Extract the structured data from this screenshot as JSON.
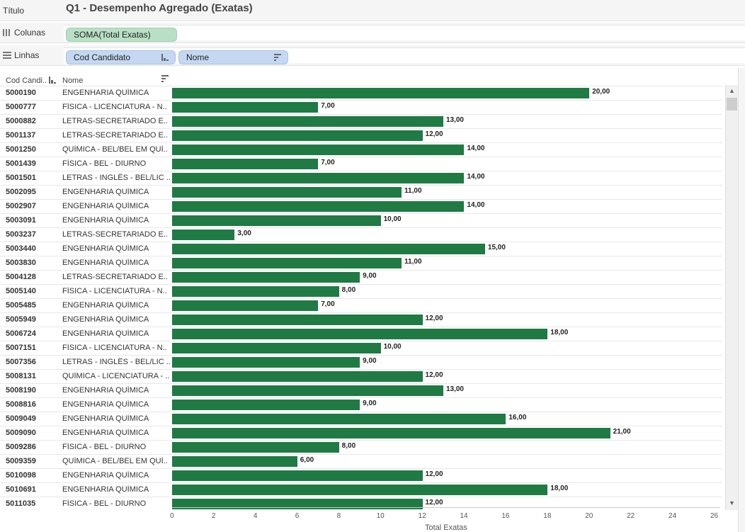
{
  "shelves": {
    "title_label": "Título",
    "title_value": "Q1 - Desempenho Agregado (Exatas)",
    "columns_label": "Colunas",
    "columns_pill": "SOMA(Total Exatas)",
    "rows_label": "Linhas",
    "rows_pills": [
      "Cod Candidato",
      "Nome"
    ]
  },
  "table": {
    "col_headers": [
      "Cod Candi..",
      "Nome"
    ]
  },
  "chart_data": {
    "type": "bar",
    "orientation": "horizontal",
    "xlabel": "Total Exatas",
    "xlim": [
      0,
      26
    ],
    "xticks": [
      0,
      2,
      4,
      6,
      8,
      10,
      12,
      14,
      16,
      18,
      20,
      22,
      24,
      26
    ],
    "bar_color": "#1f7a44",
    "rows": [
      {
        "cod": "5000190",
        "nome": "ENGENHARIA QUÍMICA",
        "value": 20,
        "label": "20,00"
      },
      {
        "cod": "5000777",
        "nome": "FÍSICA - LICENCIATURA - N..",
        "value": 7,
        "label": "7,00"
      },
      {
        "cod": "5000882",
        "nome": "LETRAS-SECRETARIADO E..",
        "value": 13,
        "label": "13,00"
      },
      {
        "cod": "5001137",
        "nome": "LETRAS-SECRETARIADO E..",
        "value": 12,
        "label": "12,00"
      },
      {
        "cod": "5001250",
        "nome": "QUÍMICA - BEL/BEL EM QUÍ..",
        "value": 14,
        "label": "14,00"
      },
      {
        "cod": "5001439",
        "nome": "FÍSICA - BEL - DIURNO",
        "value": 7,
        "label": "7,00"
      },
      {
        "cod": "5001501",
        "nome": "LETRAS - INGLÊS - BEL/LIC ..",
        "value": 14,
        "label": "14,00"
      },
      {
        "cod": "5002095",
        "nome": "ENGENHARIA QUÍMICA",
        "value": 11,
        "label": "11,00"
      },
      {
        "cod": "5002907",
        "nome": "ENGENHARIA QUÍMICA",
        "value": 14,
        "label": "14,00"
      },
      {
        "cod": "5003091",
        "nome": "ENGENHARIA QUÍMICA",
        "value": 10,
        "label": "10,00"
      },
      {
        "cod": "5003237",
        "nome": "LETRAS-SECRETARIADO E..",
        "value": 3,
        "label": "3,00"
      },
      {
        "cod": "5003440",
        "nome": "ENGENHARIA QUÍMICA",
        "value": 15,
        "label": "15,00"
      },
      {
        "cod": "5003830",
        "nome": "ENGENHARIA QUÍMICA",
        "value": 11,
        "label": "11,00"
      },
      {
        "cod": "5004128",
        "nome": "LETRAS-SECRETARIADO E..",
        "value": 9,
        "label": "9,00"
      },
      {
        "cod": "5005140",
        "nome": "FÍSICA - LICENCIATURA - N..",
        "value": 8,
        "label": "8,00"
      },
      {
        "cod": "5005485",
        "nome": "ENGENHARIA QUÍMICA",
        "value": 7,
        "label": "7,00"
      },
      {
        "cod": "5005949",
        "nome": "ENGENHARIA QUÍMICA",
        "value": 12,
        "label": "12,00"
      },
      {
        "cod": "5006724",
        "nome": "ENGENHARIA QUÍMICA",
        "value": 18,
        "label": "18,00"
      },
      {
        "cod": "5007151",
        "nome": "FÍSICA - LICENCIATURA - N..",
        "value": 10,
        "label": "10,00"
      },
      {
        "cod": "5007356",
        "nome": "LETRAS - INGLÊS - BEL/LIC ..",
        "value": 9,
        "label": "9,00"
      },
      {
        "cod": "5008131",
        "nome": "QUÍMICA - LICENCIATURA - ..",
        "value": 12,
        "label": "12,00"
      },
      {
        "cod": "5008190",
        "nome": "ENGENHARIA QUÍMICA",
        "value": 13,
        "label": "13,00"
      },
      {
        "cod": "5008816",
        "nome": "ENGENHARIA QUÍMICA",
        "value": 9,
        "label": "9,00"
      },
      {
        "cod": "5009049",
        "nome": "ENGENHARIA QUÍMICA",
        "value": 16,
        "label": "16,00"
      },
      {
        "cod": "5009090",
        "nome": "ENGENHARIA QUÍMICA",
        "value": 21,
        "label": "21,00"
      },
      {
        "cod": "5009286",
        "nome": "FÍSICA - BEL - DIURNO",
        "value": 8,
        "label": "8,00"
      },
      {
        "cod": "5009359",
        "nome": "QUÍMICA - BEL/BEL EM QUÍ..",
        "value": 6,
        "label": "6,00"
      },
      {
        "cod": "5010098",
        "nome": "ENGENHARIA QUÍMICA",
        "value": 12,
        "label": "12,00"
      },
      {
        "cod": "5010691",
        "nome": "ENGENHARIA QUÍMICA",
        "value": 18,
        "label": "18,00"
      },
      {
        "cod": "5011035",
        "nome": "FÍSICA - BEL - DIURNO",
        "value": 12,
        "label": "12,00"
      }
    ]
  }
}
